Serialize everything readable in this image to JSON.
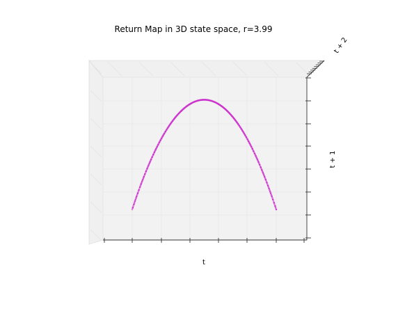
{
  "chart_data": {
    "type": "scatter",
    "projection": "3d",
    "title": "Return Map in 3D state space, r=3.99",
    "xlabel": "t",
    "ylabel": "t + 1",
    "zlabel": "t + 2",
    "r": 3.99,
    "grid": true,
    "legend": "none",
    "x_ticks_shown": 8,
    "y_ticks_shown": 8,
    "z_ticks_shown": 8,
    "point_color": "#cc33cc",
    "pane_color": "#f2f2f2",
    "curve": {
      "x": [
        0.0,
        0.05,
        0.1,
        0.15,
        0.2,
        0.25,
        0.3,
        0.35,
        0.4,
        0.45,
        0.5,
        0.55,
        0.6,
        0.65,
        0.7,
        0.75,
        0.8,
        0.85,
        0.9,
        0.95,
        1.0
      ],
      "y": [
        0.0,
        0.1895,
        0.3591,
        0.5087,
        0.6384,
        0.7481,
        0.8379,
        0.9077,
        0.9576,
        0.9875,
        0.9975,
        0.9875,
        0.9576,
        0.9077,
        0.8379,
        0.7481,
        0.6384,
        0.5087,
        0.3591,
        0.1895,
        0.0
      ]
    }
  }
}
